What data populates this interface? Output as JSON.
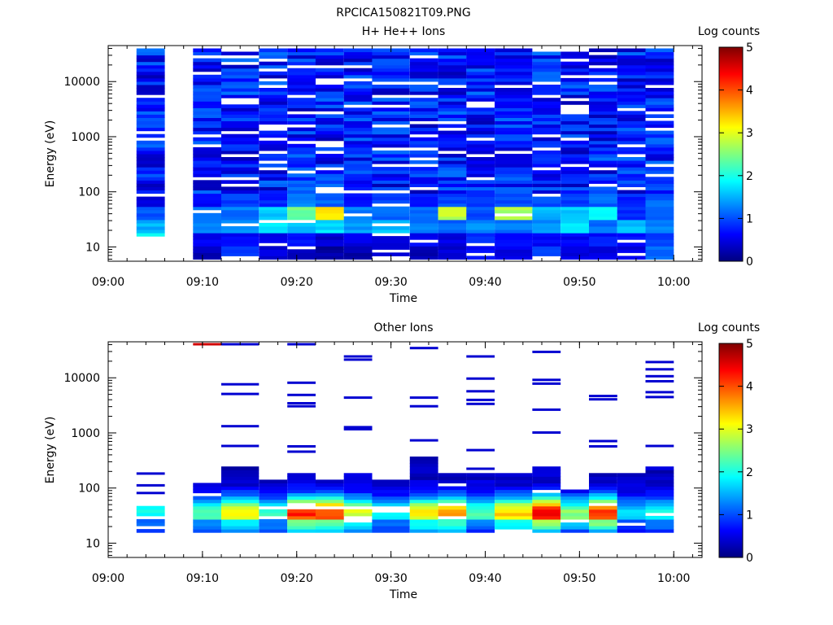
{
  "figure_title": "RPCICA150821T09.PNG",
  "colors": {
    "background": "#ffffff",
    "axis": "#000000",
    "colormap": [
      "#00007f",
      "#0000ff",
      "#007fff",
      "#00ffff",
      "#7fff7f",
      "#ffff00",
      "#ff7f00",
      "#ff0000",
      "#7f0000"
    ]
  },
  "chart_data": [
    {
      "type": "heatmap",
      "title": "H+ He++ Ions",
      "xlabel": "Time",
      "ylabel": "Energy (eV)",
      "yscale": "log",
      "xlim": [
        "09:00",
        "10:03"
      ],
      "ylim": [
        5.5,
        45000
      ],
      "x_ticks": [
        "09:00",
        "09:10",
        "09:20",
        "09:30",
        "09:40",
        "09:50",
        "10:00"
      ],
      "y_ticks": [
        "10",
        "100",
        "1000",
        "10000"
      ],
      "colorbar": {
        "label": "Log counts",
        "range": [
          0,
          5
        ],
        "ticks": [
          "0",
          "1",
          "2",
          "3",
          "4",
          "5"
        ]
      },
      "columns": [
        {
          "start": "09:03",
          "end": "09:06",
          "e_min": 15,
          "low": [
            1.8,
            2.0,
            1.5,
            1.0,
            0.5
          ]
        },
        {
          "start": "09:09",
          "end": "09:12",
          "e_min": 6,
          "low": [
            0.3,
            0.6,
            1.3,
            1.1,
            0.6
          ]
        },
        {
          "start": "09:12",
          "end": "09:16",
          "e_min": 6,
          "low": [
            0.9,
            0.6,
            1.4,
            1.2,
            0.9
          ]
        },
        {
          "start": "09:16",
          "end": "09:19",
          "e_min": 6,
          "low": [
            0.4,
            0.5,
            1.8,
            1.6,
            0.8
          ]
        },
        {
          "start": "09:19",
          "end": "09:22",
          "e_min": 6,
          "low": [
            0.3,
            0.7,
            1.6,
            2.4,
            1.3
          ]
        },
        {
          "start": "09:22",
          "end": "09:25",
          "e_min": 6,
          "low": [
            0.2,
            0.4,
            1.7,
            3.2,
            1.1
          ]
        },
        {
          "start": "09:25",
          "end": "09:28",
          "e_min": 6,
          "low": [
            0.2,
            0.5,
            1.4,
            1.2,
            0.7
          ]
        },
        {
          "start": "09:28",
          "end": "09:32",
          "e_min": 6,
          "low": [
            0.4,
            0.4,
            1.6,
            1.1,
            0.9
          ]
        },
        {
          "start": "09:32",
          "end": "09:35",
          "e_min": 6,
          "low": [
            0.3,
            0.6,
            1.2,
            1.1,
            0.7
          ]
        },
        {
          "start": "09:35",
          "end": "09:38",
          "e_min": 6,
          "low": [
            0.4,
            0.5,
            1.1,
            2.8,
            1.0
          ]
        },
        {
          "start": "09:38",
          "end": "09:41",
          "e_min": 6,
          "low": [
            0.7,
            0.8,
            1.3,
            1.0,
            0.9
          ]
        },
        {
          "start": "09:41",
          "end": "09:45",
          "e_min": 6,
          "low": [
            0.5,
            0.6,
            1.2,
            2.7,
            1.0
          ]
        },
        {
          "start": "09:45",
          "end": "09:48",
          "e_min": 6,
          "low": [
            0.9,
            0.6,
            1.3,
            1.5,
            1.0
          ]
        },
        {
          "start": "09:48",
          "end": "09:51",
          "e_min": 6,
          "low": [
            0.5,
            0.6,
            1.7,
            1.6,
            0.9
          ]
        },
        {
          "start": "09:51",
          "end": "09:54",
          "e_min": 6,
          "low": [
            0.5,
            0.7,
            1.2,
            1.8,
            1.1
          ]
        },
        {
          "start": "09:54",
          "end": "09:57",
          "e_min": 6,
          "low": [
            0.5,
            0.7,
            1.6,
            0.8,
            0.8
          ]
        },
        {
          "start": "09:57",
          "end": "10:00",
          "e_min": 6,
          "low": [
            1.1,
            0.9,
            1.3,
            1.0,
            1.1
          ]
        }
      ]
    },
    {
      "type": "heatmap",
      "title": "Other Ions",
      "xlabel": "Time",
      "ylabel": "Energy (eV)",
      "yscale": "log",
      "xlim": [
        "09:00",
        "10:03"
      ],
      "ylim": [
        5.5,
        45000
      ],
      "x_ticks": [
        "09:00",
        "09:10",
        "09:20",
        "09:30",
        "09:40",
        "09:50",
        "10:00"
      ],
      "y_ticks": [
        "10",
        "100",
        "1000",
        "10000"
      ],
      "colorbar": {
        "label": "Log counts",
        "range": [
          0,
          5
        ],
        "ticks": [
          "0",
          "1",
          "2",
          "3",
          "4",
          "5"
        ]
      },
      "columns": [
        {
          "start": "09:03",
          "end": "09:06",
          "peak": 1.6,
          "dense_top": 45,
          "lines": [
            180,
            110,
            80
          ]
        },
        {
          "start": "09:09",
          "end": "09:12",
          "peak": 1.9,
          "dense_top": 130,
          "lines": [
            40000
          ]
        },
        {
          "start": "09:12",
          "end": "09:16",
          "peak": 2.8,
          "dense_top": 260,
          "lines": [
            40000,
            7500,
            5000,
            1300,
            570
          ]
        },
        {
          "start": "09:16",
          "end": "09:19",
          "peak": 1.8,
          "dense_top": 150,
          "lines": []
        },
        {
          "start": "09:19",
          "end": "09:22",
          "peak": 3.9,
          "dense_top": 190,
          "lines": [
            40000,
            8000,
            4800,
            3400,
            3000,
            560,
            450
          ]
        },
        {
          "start": "09:22",
          "end": "09:25",
          "peak": 3.8,
          "dense_top": 150,
          "lines": []
        },
        {
          "start": "09:25",
          "end": "09:28",
          "peak": 2.6,
          "dense_top": 190,
          "lines": [
            24000,
            21000,
            4300,
            1250,
            1150
          ]
        },
        {
          "start": "09:28",
          "end": "09:32",
          "peak": 1.6,
          "dense_top": 150,
          "lines": []
        },
        {
          "start": "09:32",
          "end": "09:35",
          "peak": 2.9,
          "dense_top": 360,
          "lines": [
            34000,
            4300,
            3000,
            720
          ]
        },
        {
          "start": "09:35",
          "end": "09:38",
          "peak": 3.3,
          "dense_top": 190,
          "lines": []
        },
        {
          "start": "09:38",
          "end": "09:41",
          "peak": 1.9,
          "dense_top": 180,
          "lines": [
            24000,
            9500,
            5600,
            3900,
            3300,
            480,
            220
          ]
        },
        {
          "start": "09:41",
          "end": "09:45",
          "peak": 3.0,
          "dense_top": 180,
          "lines": []
        },
        {
          "start": "09:45",
          "end": "09:48",
          "peak": 4.3,
          "dense_top": 230,
          "lines": [
            29000,
            9000,
            7700,
            2600,
            1000
          ]
        },
        {
          "start": "09:48",
          "end": "09:51",
          "peak": 2.2,
          "dense_top": 90,
          "lines": []
        },
        {
          "start": "09:51",
          "end": "09:54",
          "peak": 3.8,
          "dense_top": 190,
          "lines": [
            4600,
            4000,
            700,
            560
          ]
        },
        {
          "start": "09:54",
          "end": "09:57",
          "peak": 1.4,
          "dense_top": 180,
          "lines": []
        },
        {
          "start": "09:57",
          "end": "10:00",
          "peak": 1.7,
          "dense_top": 250,
          "lines": [
            19000,
            14000,
            10500,
            8500,
            5400,
            4400,
            570
          ]
        }
      ]
    }
  ]
}
